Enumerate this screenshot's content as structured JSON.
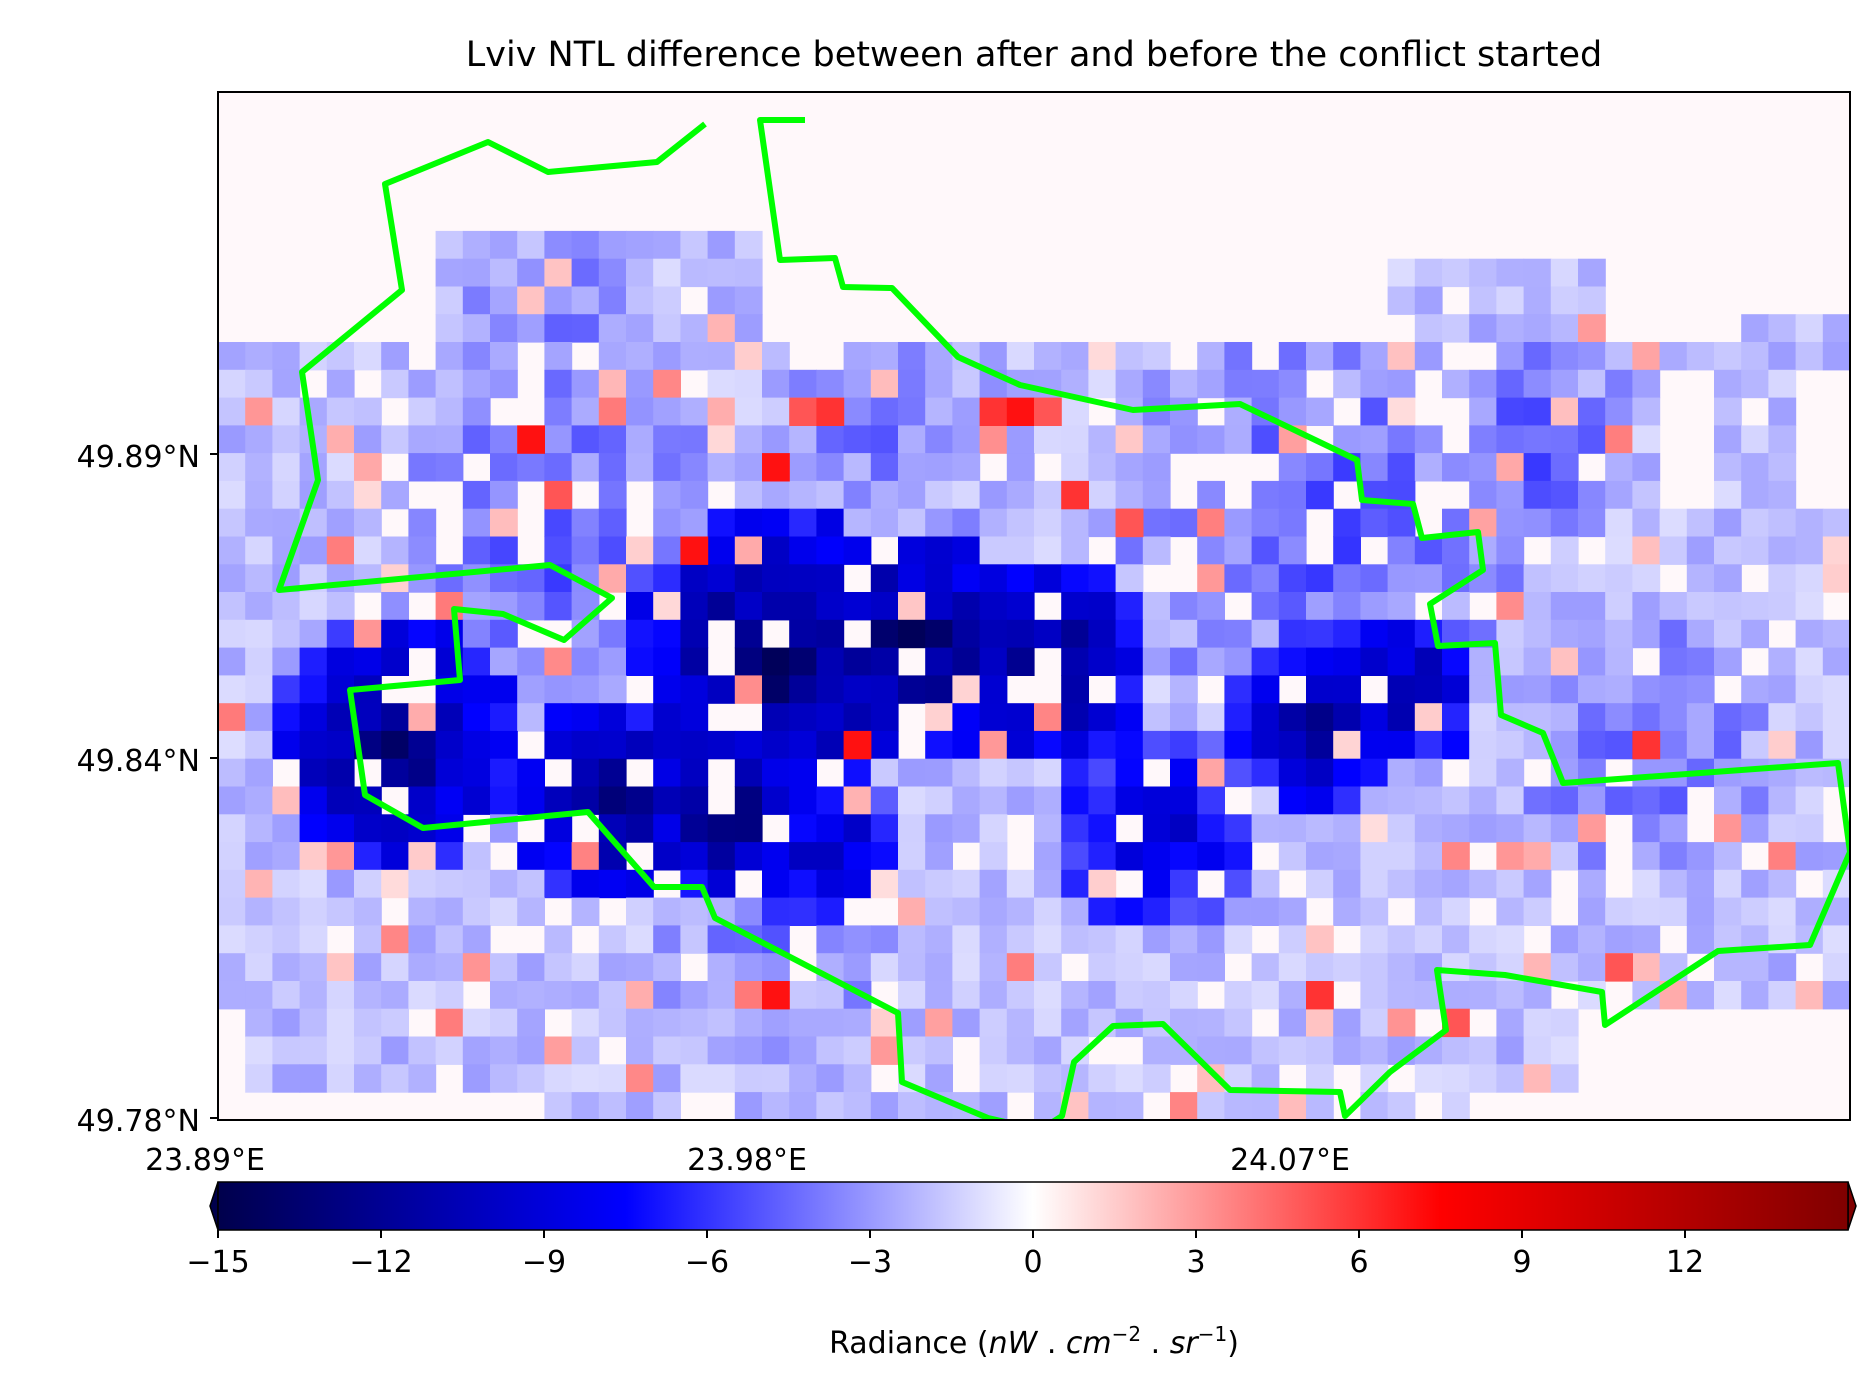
{
  "title": "Lviv NTL difference between after and before the conflict started",
  "map": {
    "lat_range": [
      49.78,
      49.9196
    ],
    "lon_range": [
      23.89,
      24.161
    ],
    "lat_ticks": [
      "49.89°N",
      "49.84°N",
      "49.78°N"
    ],
    "lon_ticks": [
      "23.89°E",
      "23.98°E",
      "24.07°E"
    ],
    "grid": "60 columns x 37 rows of radiance-difference pixels",
    "boundary_color": "#00ff00",
    "boundary_name": "Lviv city boundary"
  },
  "colorbar": {
    "cmap": "seismic",
    "vmin": -15,
    "vmax": 15,
    "extend": "both",
    "tick_values": [
      -15,
      -12,
      -9,
      -6,
      -3,
      0,
      3,
      6,
      9,
      12
    ],
    "tick_labels": [
      "−15",
      "−12",
      "−9",
      "−6",
      "−3",
      "0",
      "3",
      "6",
      "9",
      "12"
    ],
    "label_prefix": "Radiance (",
    "label_nw": "nW",
    "label_dot": " . ",
    "label_cm": "cm",
    "label_cm_exp": "−2",
    "label_sr": "sr",
    "label_sr_exp": "−1",
    "label_suffix": ")"
  }
}
